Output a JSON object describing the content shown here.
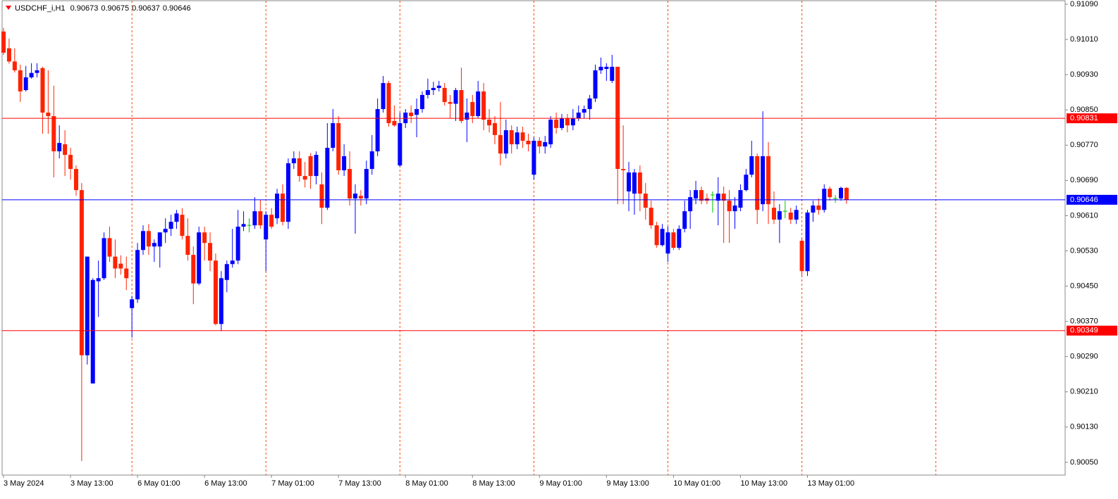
{
  "chart_data": {
    "type": "candlestick",
    "symbol": "USDCHF_i,H1",
    "header_values": [
      0.90673,
      0.90675,
      0.90637,
      0.90646
    ],
    "bull_color": "#0000ff",
    "bear_color": "#ff2200",
    "doji_color": "#00c800",
    "grid": true,
    "grid_color": "#ff4500",
    "ylim": [
      0.90021,
      0.91098
    ],
    "yticks": [
      {
        "value": 0.9109,
        "label": "0.91090"
      },
      {
        "value": 0.9101,
        "label": "0.91010"
      },
      {
        "value": 0.9093,
        "label": "0.90930"
      },
      {
        "value": 0.9085,
        "label": "0.90850"
      },
      {
        "value": 0.9077,
        "label": "0.90770"
      },
      {
        "value": 0.9069,
        "label": "0.90690"
      },
      {
        "value": 0.9061,
        "label": "0.90610"
      },
      {
        "value": 0.9053,
        "label": "0.90530"
      },
      {
        "value": 0.9045,
        "label": "0.90450"
      },
      {
        "value": 0.9037,
        "label": "0.90370"
      },
      {
        "value": 0.9029,
        "label": "0.90290"
      },
      {
        "value": 0.9021,
        "label": "0.90210"
      },
      {
        "value": 0.9013,
        "label": "0.90130"
      },
      {
        "value": 0.9005,
        "label": "0.90050"
      }
    ],
    "levels": [
      {
        "value": 0.90831,
        "color": "#ff0000"
      },
      {
        "value": 0.90349,
        "color": "#ff0000"
      },
      {
        "value": 0.90646,
        "color": "#0000ff"
      }
    ],
    "categories": [
      "3 May 2024",
      null,
      null,
      null,
      null,
      null,
      null,
      null,
      null,
      null,
      null,
      null,
      "3 May 13:00",
      null,
      null,
      null,
      null,
      null,
      null,
      null,
      null,
      null,
      null,
      null,
      "6 May 01:00",
      null,
      null,
      null,
      null,
      null,
      null,
      null,
      null,
      null,
      null,
      null,
      "6 May 13:00",
      null,
      null,
      null,
      null,
      null,
      null,
      null,
      null,
      null,
      null,
      null,
      "7 May 01:00",
      null,
      null,
      null,
      null,
      null,
      null,
      null,
      null,
      null,
      null,
      null,
      "7 May 13:00",
      null,
      null,
      null,
      null,
      null,
      null,
      null,
      null,
      null,
      null,
      null,
      "8 May 01:00",
      null,
      null,
      null,
      null,
      null,
      null,
      null,
      null,
      null,
      null,
      null,
      "8 May 13:00",
      null,
      null,
      null,
      null,
      null,
      null,
      null,
      null,
      null,
      null,
      null,
      "9 May 01:00",
      null,
      null,
      null,
      null,
      null,
      null,
      null,
      null,
      null,
      null,
      null,
      "9 May 13:00",
      null,
      null,
      null,
      null,
      null,
      null,
      null,
      null,
      null,
      null,
      null,
      "10 May 01:00",
      null,
      null,
      null,
      null,
      null,
      null,
      null,
      null,
      null,
      null,
      null,
      "10 May 13:00",
      null,
      null,
      null,
      null,
      null,
      null,
      null,
      null,
      null,
      null,
      null,
      "13 May 01:00",
      null,
      null,
      null,
      null,
      null,
      null,
      null
    ],
    "open": [
      0.91028,
      0.9099,
      0.9096,
      0.9094,
      0.90895,
      0.90924,
      0.90934,
      0.90945,
      0.90844,
      0.90836,
      0.90756,
      0.90772,
      0.90748,
      0.90716,
      0.90668,
      0.90293,
      0.90229,
      0.90461,
      0.90468,
      0.90559,
      0.90517,
      0.90501,
      0.9049,
      0.904,
      0.9042,
      0.90532,
      0.90575,
      0.9054,
      0.9054,
      0.90572,
      0.9058,
      0.90596,
      0.90612,
      0.90564,
      0.90521,
      0.90456,
      0.90572,
      0.90548,
      0.90508,
      0.90364,
      0.90464,
      0.905,
      0.90508,
      0.90585,
      0.90588,
      0.90588,
      0.9062,
      0.90556,
      0.90612,
      0.90604,
      0.9066,
      0.90596,
      0.90729,
      0.9074,
      0.907,
      0.90745,
      0.907,
      0.90681,
      0.90628,
      0.90764,
      0.9082,
      0.90713,
      0.90716,
      0.90649,
      0.90655,
      0.90649,
      0.90716,
      0.90756,
      0.90852,
      0.90911,
      0.90825,
      0.90724,
      0.9082,
      0.90844,
      0.90839,
      0.90852,
      0.90884,
      0.90895,
      0.909,
      0.909,
      0.90868,
      0.90864,
      0.90895,
      0.90828,
      0.90868,
      0.90836,
      0.90892,
      0.90828,
      0.9082,
      0.90793,
      0.90751,
      0.90804,
      0.90772,
      0.90799,
      0.9078,
      0.90703,
      0.9078,
      0.90767,
      0.90772,
      0.90828,
      0.90809,
      0.90831,
      0.90815,
      0.90831,
      0.90844,
      0.90852,
      0.90876,
      0.9094,
      0.90943,
      0.90916,
      0.90948,
      0.90716,
      0.90665,
      0.9066,
      0.90708,
      0.9066,
      0.90628,
      0.90588,
      0.90543,
      0.90524,
      0.90572,
      0.90537,
      0.9058,
      0.9062,
      0.90649,
      0.90668,
      0.90649,
      0.90657,
      0.90644,
      0.9066,
      0.90644,
      0.9062,
      0.90628,
      0.90668,
      0.90703,
      0.90745,
      0.90636,
      0.90745,
      0.90628,
      0.90601,
      0.9062,
      0.90617,
      0.90601,
      0.90553,
      0.90484,
      0.90617,
      0.90633,
      0.90623,
      0.90671,
      0.90649,
      0.90649,
      0.90673
    ],
    "high": [
      0.91036,
      0.91012,
      0.9099,
      0.90953,
      0.9095,
      0.90956,
      0.90956,
      0.90948,
      0.9094,
      0.90905,
      0.90815,
      0.90804,
      0.90764,
      0.90724,
      0.90684,
      0.90517,
      0.90468,
      0.90508,
      0.90572,
      0.90585,
      0.90556,
      0.9052,
      0.90517,
      0.90428,
      0.90548,
      0.90588,
      0.90591,
      0.90556,
      0.90572,
      0.90604,
      0.90612,
      0.90623,
      0.90627,
      0.90604,
      0.9054,
      0.90585,
      0.90585,
      0.90572,
      0.90524,
      0.90484,
      0.90508,
      0.9058,
      0.90623,
      0.9062,
      0.90604,
      0.90652,
      0.90646,
      0.9062,
      0.90627,
      0.90671,
      0.90681,
      0.9074,
      0.90756,
      0.90756,
      0.90732,
      0.90752,
      0.90756,
      0.90708,
      0.9082,
      0.90852,
      0.90836,
      0.90772,
      0.90756,
      0.90681,
      0.90668,
      0.90735,
      0.90793,
      0.90876,
      0.90927,
      0.90916,
      0.9086,
      0.90844,
      0.90852,
      0.9086,
      0.90876,
      0.90892,
      0.90921,
      0.90914,
      0.90916,
      0.90911,
      0.90884,
      0.909,
      0.90946,
      0.90876,
      0.90884,
      0.90916,
      0.90911,
      0.90852,
      0.90836,
      0.90868,
      0.90828,
      0.90815,
      0.90812,
      0.90812,
      0.90796,
      0.90788,
      0.90788,
      0.90791,
      0.90836,
      0.90844,
      0.90841,
      0.90841,
      0.90852,
      0.9086,
      0.9086,
      0.90884,
      0.90953,
      0.90969,
      0.90956,
      0.90975,
      0.90948,
      0.90815,
      0.90732,
      0.90716,
      0.90724,
      0.90684,
      0.90644,
      0.90596,
      0.90591,
      0.90585,
      0.9058,
      0.90588,
      0.90644,
      0.90668,
      0.90689,
      0.90676,
      0.9066,
      0.90665,
      0.90697,
      0.90676,
      0.90668,
      0.90652,
      0.90681,
      0.90716,
      0.9078,
      0.90751,
      0.90847,
      0.90777,
      0.90665,
      0.90636,
      0.90644,
      0.90628,
      0.90633,
      0.90559,
      0.90623,
      0.90644,
      0.90649,
      0.90681,
      0.90676,
      0.90657,
      0.90676,
      0.90675
    ],
    "low": [
      0.90975,
      0.90955,
      0.90935,
      0.90868,
      0.90892,
      0.90921,
      0.90924,
      0.90796,
      0.90796,
      0.90697,
      0.9074,
      0.907,
      0.90692,
      0.90655,
      0.90053,
      0.90272,
      0.90229,
      0.9038,
      0.90464,
      0.90505,
      0.90468,
      0.90476,
      0.90441,
      0.90333,
      0.90412,
      0.90521,
      0.90521,
      0.90505,
      0.90492,
      0.90548,
      0.90564,
      0.9058,
      0.90556,
      0.90508,
      0.90409,
      0.90452,
      0.90508,
      0.90484,
      0.90361,
      0.90348,
      0.90436,
      0.90492,
      0.905,
      0.90575,
      0.90572,
      0.9058,
      0.9058,
      0.90484,
      0.9058,
      0.90591,
      0.90588,
      0.9058,
      0.90716,
      0.90687,
      0.90674,
      0.90671,
      0.90681,
      0.90591,
      0.90623,
      0.90756,
      0.90703,
      0.907,
      0.90633,
      0.90569,
      0.90633,
      0.90636,
      0.90703,
      0.90745,
      0.90844,
      0.90812,
      0.90812,
      0.90721,
      0.90809,
      0.9082,
      0.90788,
      0.90844,
      0.90876,
      0.90884,
      0.90892,
      0.9086,
      0.90831,
      0.90825,
      0.9082,
      0.90777,
      0.9082,
      0.90831,
      0.90804,
      0.90799,
      0.90772,
      0.90724,
      0.9074,
      0.90751,
      0.90761,
      0.90764,
      0.90756,
      0.90692,
      0.90751,
      0.90751,
      0.90764,
      0.90796,
      0.90804,
      0.90799,
      0.90804,
      0.90825,
      0.90831,
      0.90828,
      0.90868,
      0.90932,
      0.90916,
      0.90911,
      0.90636,
      0.90636,
      0.9062,
      0.90612,
      0.9062,
      0.90601,
      0.9058,
      0.90537,
      0.9054,
      0.90505,
      0.90532,
      0.90532,
      0.90572,
      0.9058,
      0.90636,
      0.90636,
      0.90636,
      0.90617,
      0.90588,
      0.90548,
      0.90548,
      0.9058,
      0.9062,
      0.90665,
      0.90697,
      0.90591,
      0.9062,
      0.90591,
      0.90591,
      0.90548,
      0.90604,
      0.90591,
      0.90591,
      0.90473,
      0.90473,
      0.90596,
      0.90612,
      0.90617,
      0.90644,
      0.90639,
      0.90644,
      0.90637
    ],
    "close": [
      0.9098,
      0.9096,
      0.9094,
      0.90892,
      0.90924,
      0.90934,
      0.9094,
      0.90844,
      0.90836,
      0.90756,
      0.90775,
      0.90748,
      0.90716,
      0.90668,
      0.90293,
      0.90517,
      0.90464,
      0.90468,
      0.90559,
      0.90517,
      0.9049,
      0.9049,
      0.90468,
      0.9042,
      0.90532,
      0.90575,
      0.9054,
      0.90548,
      0.90572,
      0.9058,
      0.90596,
      0.90615,
      0.90564,
      0.90521,
      0.90456,
      0.90572,
      0.90548,
      0.90508,
      0.90364,
      0.90468,
      0.905,
      0.90508,
      0.90585,
      0.90591,
      0.90588,
      0.9062,
      0.90588,
      0.90612,
      0.90585,
      0.9066,
      0.90596,
      0.90729,
      0.9074,
      0.907,
      0.90692,
      0.907,
      0.90748,
      0.90628,
      0.90764,
      0.9082,
      0.90713,
      0.90745,
      0.90649,
      0.9066,
      0.90649,
      0.90716,
      0.90756,
      0.90852,
      0.90911,
      0.9082,
      0.90815,
      0.9082,
      0.90844,
      0.90836,
      0.90852,
      0.90884,
      0.90895,
      0.909,
      0.90905,
      0.90868,
      0.90864,
      0.90895,
      0.90825,
      0.90844,
      0.90836,
      0.90892,
      0.90828,
      0.90815,
      0.90793,
      0.90751,
      0.90804,
      0.90772,
      0.90799,
      0.9078,
      0.90772,
      0.9078,
      0.90767,
      0.90777,
      0.90828,
      0.90809,
      0.90831,
      0.90815,
      0.90831,
      0.90844,
      0.90852,
      0.90876,
      0.9094,
      0.90948,
      0.90948,
      0.90948,
      0.90716,
      0.90713,
      0.90708,
      0.90708,
      0.9066,
      0.90628,
      0.90588,
      0.90543,
      0.9058,
      0.90572,
      0.90537,
      0.9058,
      0.9062,
      0.90652,
      0.90668,
      0.90644,
      0.90644,
      0.90657,
      0.9066,
      0.90644,
      0.9062,
      0.90633,
      0.90668,
      0.90703,
      0.90745,
      0.90623,
      0.90745,
      0.90636,
      0.90601,
      0.9062,
      0.9062,
      0.90601,
      0.90623,
      0.90484,
      0.90617,
      0.90633,
      0.90623,
      0.90671,
      0.90652,
      0.90649,
      0.90673,
      0.90646
    ]
  }
}
